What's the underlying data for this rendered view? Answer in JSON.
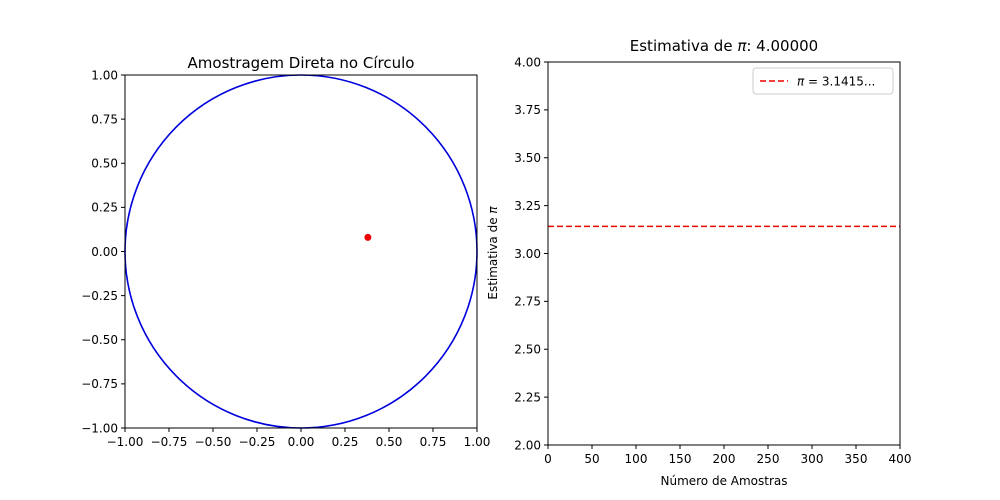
{
  "chart_data": [
    {
      "type": "scatter",
      "title": "Amostragem Direta no Círculo",
      "xlabel": "",
      "ylabel": "",
      "xlim": [
        -1.0,
        1.0
      ],
      "ylim": [
        -1.0,
        1.0
      ],
      "xticks": [
        "−1.00",
        "−0.75",
        "−0.50",
        "−0.25",
        "0.00",
        "0.25",
        "0.50",
        "0.75",
        "1.00"
      ],
      "yticks": [
        "−1.00",
        "−0.75",
        "−0.50",
        "−0.25",
        "0.00",
        "0.25",
        "0.50",
        "0.75",
        "1.00"
      ],
      "xtick_values": [
        -1.0,
        -0.75,
        -0.5,
        -0.25,
        0.0,
        0.25,
        0.5,
        0.75,
        1.0
      ],
      "ytick_values": [
        -1.0,
        -0.75,
        -0.5,
        -0.25,
        0.0,
        0.25,
        0.5,
        0.75,
        1.0
      ],
      "circle": {
        "center": [
          0,
          0
        ],
        "radius": 1.0,
        "color": "#0000dd"
      },
      "points": [
        {
          "x": 0.38,
          "y": 0.08,
          "color": "#ee0000"
        }
      ],
      "grid": false
    },
    {
      "type": "line",
      "title_prefix": "Estimativa de ",
      "title_symbol": "π",
      "title_suffix": ": 4.00000",
      "xlabel": "Número de Amostras",
      "ylabel_prefix": "Estimativa de ",
      "ylabel_symbol": "π",
      "xlim": [
        0,
        400
      ],
      "ylim": [
        2.0,
        4.0
      ],
      "xticks": [
        "0",
        "50",
        "100",
        "150",
        "200",
        "250",
        "300",
        "350",
        "400"
      ],
      "yticks": [
        "2.00",
        "2.25",
        "2.50",
        "2.75",
        "3.00",
        "3.25",
        "3.50",
        "3.75",
        "4.00"
      ],
      "xtick_values": [
        0,
        50,
        100,
        150,
        200,
        250,
        300,
        350,
        400
      ],
      "ytick_values": [
        2.0,
        2.25,
        2.5,
        2.75,
        3.0,
        3.25,
        3.5,
        3.75,
        4.0
      ],
      "series": [
        {
          "name_symbol": "π",
          "name_suffix": " = 3.1415...",
          "y": 3.14159,
          "style": "dashed",
          "color": "#ee0000"
        }
      ],
      "legend_position": "top-right",
      "grid": false
    }
  ]
}
